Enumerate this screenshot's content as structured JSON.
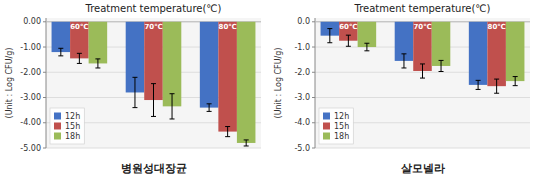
{
  "chart_data": [
    {
      "type": "bar",
      "title": "Treatment temperature(℃)",
      "xlabel": "병원성대장균",
      "ylabel": "(Unit : Log CFU/g)",
      "categories": [
        "60℃",
        "70℃",
        "80℃"
      ],
      "series": [
        {
          "name": "12h",
          "color": "#4472C4",
          "values": [
            -1.2,
            -2.8,
            -3.4
          ],
          "errors": [
            0.15,
            0.6,
            0.15
          ]
        },
        {
          "name": "15h",
          "color": "#C0504D",
          "values": [
            -1.45,
            -3.1,
            -4.35
          ],
          "errors": [
            0.2,
            0.65,
            0.2
          ]
        },
        {
          "name": "18h",
          "color": "#9BBB59",
          "values": [
            -1.65,
            -3.35,
            -4.8
          ],
          "errors": [
            0.18,
            0.5,
            0.12
          ]
        }
      ],
      "ylim": [
        -5.0,
        0.15
      ],
      "yticks": [
        {
          "value": 0.0,
          "label": "0.00"
        },
        {
          "value": -1.0,
          "label": "-1.00"
        },
        {
          "value": -2.0,
          "label": "-2.00"
        },
        {
          "value": -3.0,
          "label": "-3.00"
        },
        {
          "value": -4.0,
          "label": "-4.00"
        },
        {
          "value": -5.0,
          "label": "-5.00"
        }
      ],
      "grid": true,
      "legend": "lower left"
    },
    {
      "type": "bar",
      "title": "Treatment temperature(℃)",
      "xlabel": "살모넬라",
      "ylabel": "(Unit : Log CFU/g)",
      "categories": [
        "60℃",
        "70℃",
        "80℃"
      ],
      "series": [
        {
          "name": "12h",
          "color": "#4472C4",
          "values": [
            -0.55,
            -1.55,
            -2.5
          ],
          "errors": [
            0.28,
            0.28,
            0.18
          ]
        },
        {
          "name": "15h",
          "color": "#C0504D",
          "values": [
            -0.75,
            -1.95,
            -2.55
          ],
          "errors": [
            0.22,
            0.28,
            0.28
          ]
        },
        {
          "name": "18h",
          "color": "#9BBB59",
          "values": [
            -1.0,
            -1.75,
            -2.35
          ],
          "errors": [
            0.15,
            0.22,
            0.18
          ]
        }
      ],
      "ylim": [
        -5.0,
        0.15
      ],
      "yticks": [
        {
          "value": 0.0,
          "label": "0.0"
        },
        {
          "value": -1.0,
          "label": "-1.0"
        },
        {
          "value": -2.0,
          "label": "-2.0"
        },
        {
          "value": -3.0,
          "label": "-3.0"
        },
        {
          "value": -4.0,
          "label": "-4.0"
        },
        {
          "value": -5.0,
          "label": "-5.0"
        }
      ],
      "grid": true,
      "legend": "lower left"
    }
  ]
}
